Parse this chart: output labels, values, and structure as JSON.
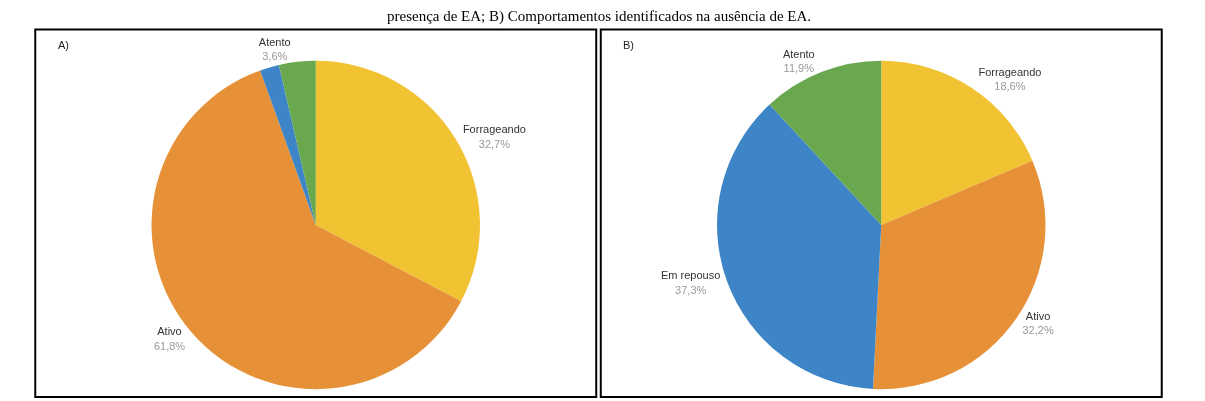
{
  "chart_data": [
    {
      "type": "pie",
      "title": "A)",
      "annotations": [
        "presença de EA; B) Comportamentos identificados na ausência de EA."
      ],
      "categories": [
        "Forrageando",
        "Ativo",
        null,
        "Atento"
      ],
      "values": [
        32.7,
        61.8,
        1.9,
        3.6
      ],
      "value_labels": [
        "32,7%",
        "61,8%",
        null,
        "3,6%"
      ],
      "colors": [
        "#f1c232",
        "#e69138",
        "#3d85c6",
        "#6aa84f"
      ]
    },
    {
      "type": "pie",
      "title": "B)",
      "categories": [
        "Forrageando",
        "Ativo",
        "Em repouso",
        "Atento"
      ],
      "values": [
        18.6,
        32.2,
        37.3,
        11.9
      ],
      "value_labels": [
        "18,6%",
        "32,2%",
        "37,3%",
        "11,9%"
      ],
      "colors": [
        "#f1c232",
        "#e69138",
        "#3d85c6",
        "#6aa84f"
      ]
    }
  ]
}
